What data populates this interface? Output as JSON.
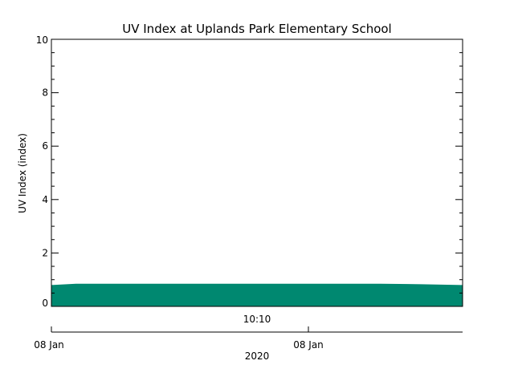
{
  "chart_data": {
    "type": "area",
    "title": "UV Index at Uplands Park Elementary School",
    "ylabel": "UV Index (index)",
    "xlabel": "2020",
    "ylim": [
      0,
      10
    ],
    "yticks": [
      0,
      2,
      4,
      6,
      8,
      10
    ],
    "x_center_label": "10:10",
    "x_date_labels": [
      "08 Jan",
      "08 Jan"
    ],
    "grid": false,
    "fill_color": "#008870",
    "series": [
      {
        "x": [
          0,
          0.06,
          0.2,
          0.4,
          0.6,
          0.8,
          0.9,
          1.0
        ],
        "values": [
          0.8,
          0.85,
          0.85,
          0.85,
          0.85,
          0.85,
          0.83,
          0.8
        ]
      }
    ]
  }
}
